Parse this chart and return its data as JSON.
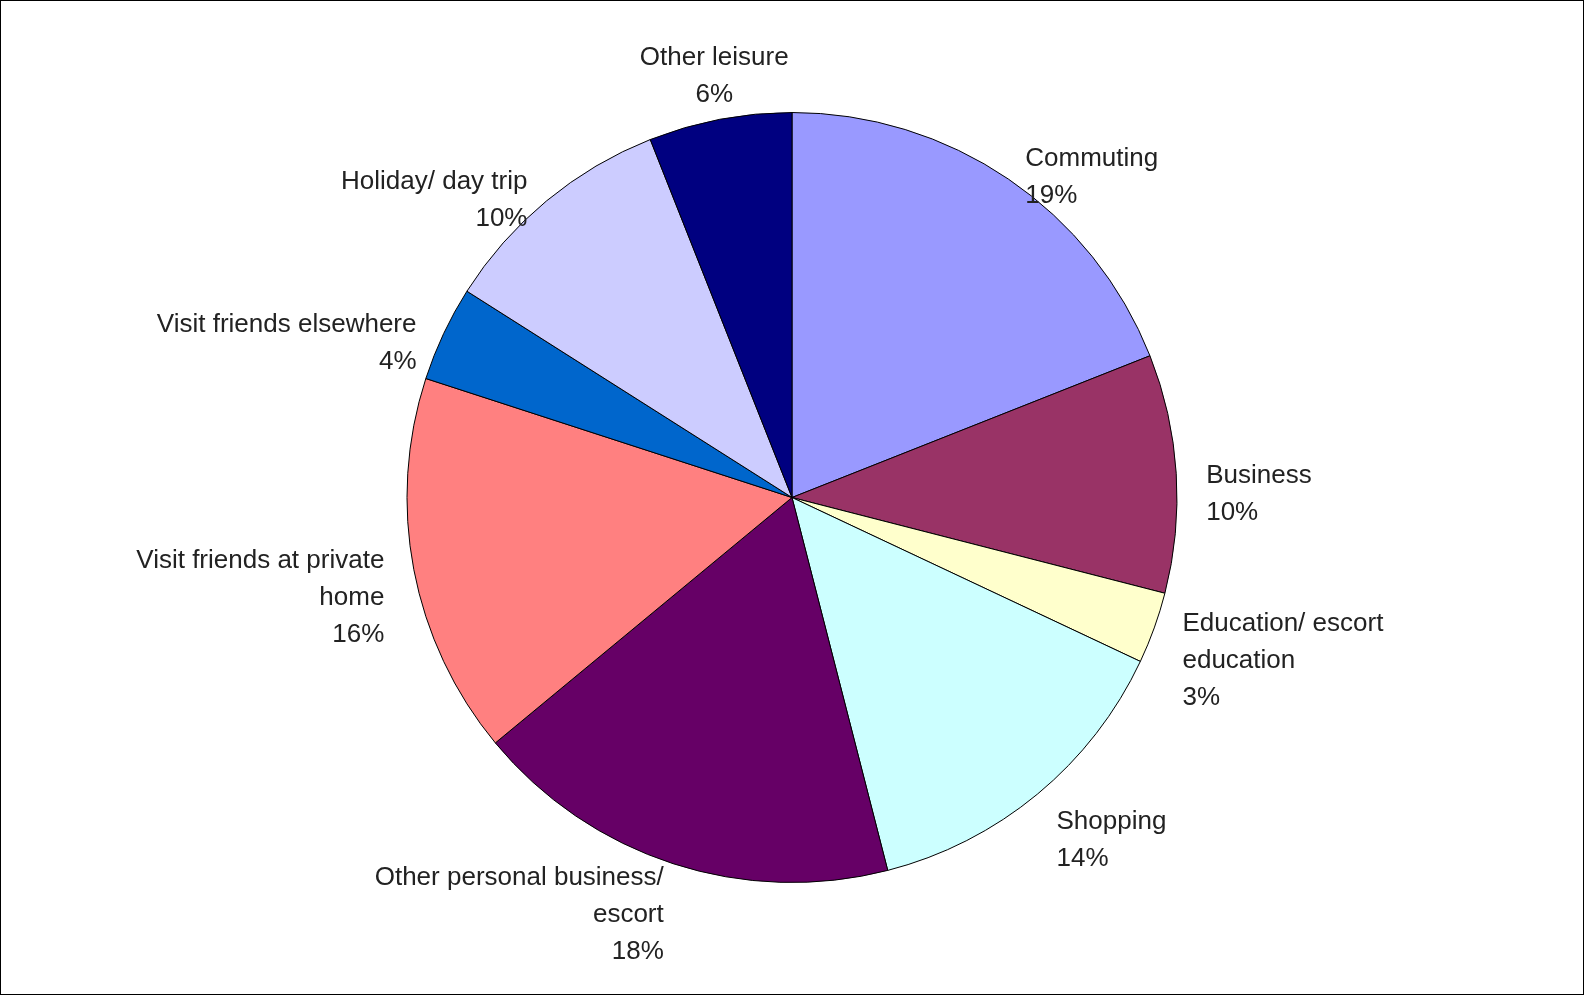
{
  "chart_data": {
    "type": "pie",
    "categories": [
      "Commuting",
      "Business",
      "Education/ escort education",
      "Shopping",
      "Other personal business/ escort",
      "Visit friends at private home",
      "Visit friends elsewhere",
      "Holiday/ day trip",
      "Other leisure"
    ],
    "values": [
      19,
      10,
      3,
      14,
      18,
      16,
      4,
      10,
      6
    ],
    "value_labels": [
      "19%",
      "10%",
      "3%",
      "14%",
      "18%",
      "16%",
      "4%",
      "10%",
      "6%"
    ],
    "colors": [
      "#9999ff",
      "#993366",
      "#ffffcc",
      "#ccffff",
      "#660066",
      "#ff8080",
      "#0066cc",
      "#ccccff",
      "#000080"
    ]
  }
}
